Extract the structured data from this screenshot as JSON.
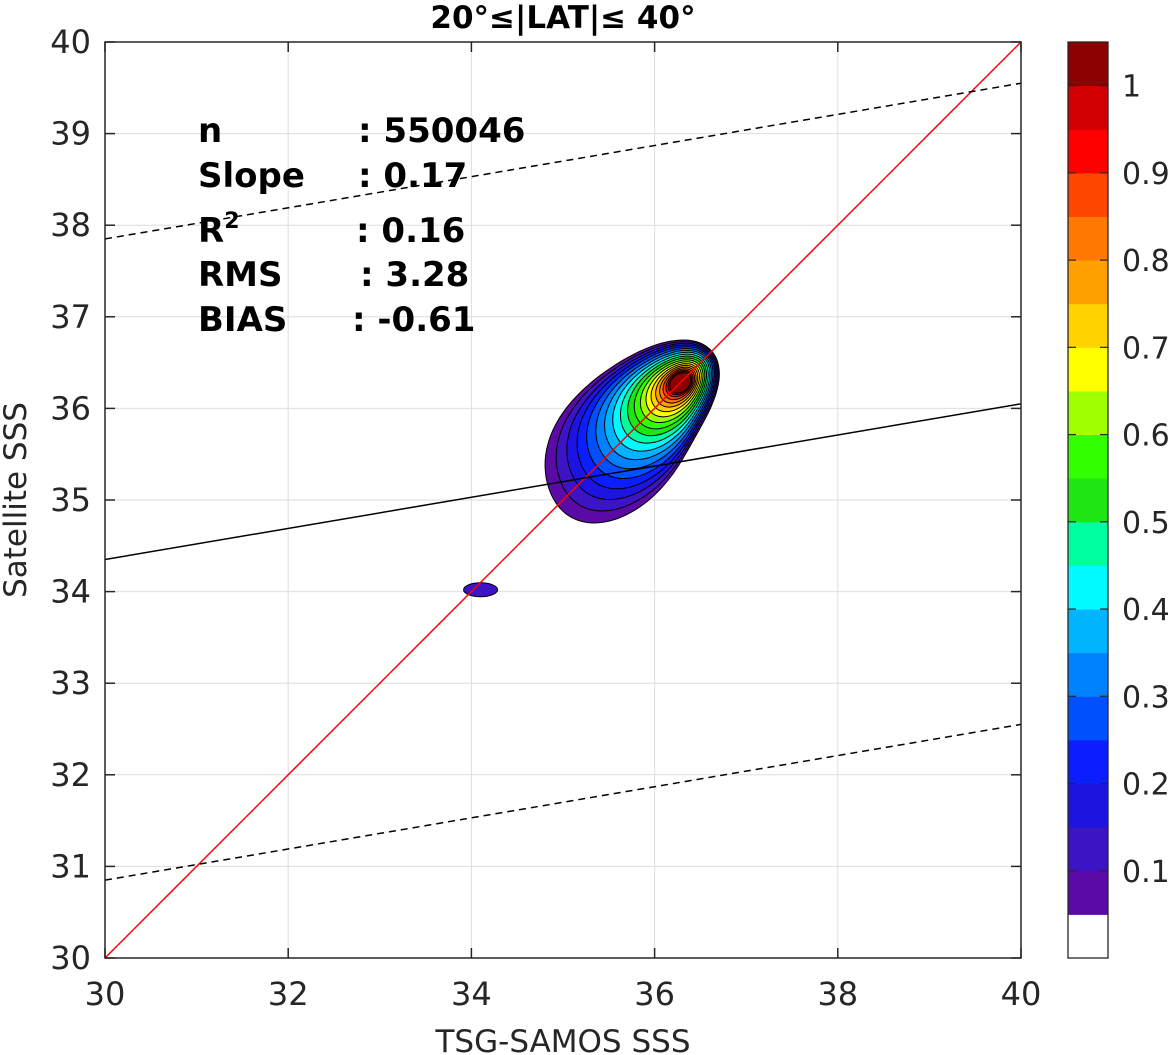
{
  "chart_data": {
    "type": "contour",
    "title": "20°≤|LAT|≤ 40°",
    "xlabel": "TSG-SAMOS SSS",
    "ylabel": "Satellite SSS",
    "xlim": [
      30,
      40
    ],
    "ylim": [
      30,
      40
    ],
    "xticks": [
      "30",
      "32",
      "34",
      "36",
      "38",
      "40"
    ],
    "yticks": [
      "30",
      "31",
      "32",
      "33",
      "34",
      "35",
      "36",
      "37",
      "38",
      "39",
      "40"
    ],
    "grid": true,
    "stats": [
      {
        "label": "n",
        "value": ": 550046"
      },
      {
        "label": "Slope",
        "value": ": 0.17"
      },
      {
        "label": "R",
        "sup": "2",
        "value": ": 0.16"
      },
      {
        "label": "RMS",
        "value": ": 3.28"
      },
      {
        "label": "BIAS",
        "value": ": -0.61"
      }
    ],
    "lines": [
      {
        "name": "one-to-one",
        "color": "#ff0000",
        "style": "solid",
        "x": [
          30,
          40
        ],
        "y": [
          30,
          40
        ]
      },
      {
        "name": "regression",
        "color": "#000000",
        "style": "solid",
        "x": [
          30,
          40
        ],
        "y": [
          34.35,
          36.05
        ]
      },
      {
        "name": "upper-bound",
        "color": "#000000",
        "style": "dashed",
        "x": [
          30,
          40
        ],
        "y": [
          37.85,
          39.55
        ]
      },
      {
        "name": "lower-bound",
        "color": "#000000",
        "style": "dashed",
        "x": [
          30,
          40
        ],
        "y": [
          30.85,
          32.55
        ]
      }
    ],
    "density_levels": [
      0.05,
      0.1,
      0.15,
      0.2,
      0.25,
      0.3,
      0.35,
      0.4,
      0.45,
      0.5,
      0.55,
      0.6,
      0.65,
      0.7,
      0.75,
      0.8,
      0.85,
      0.9,
      0.95,
      1.0
    ],
    "density_peak": {
      "x": 36.28,
      "y": 36.28,
      "value": 1.0
    },
    "secondary_blob": {
      "x": 34.1,
      "y": 34.02,
      "level": 0.1
    },
    "colorbar": {
      "ticks": [
        "0.1",
        "0.2",
        "0.3",
        "0.4",
        "0.5",
        "0.6",
        "0.7",
        "0.8",
        "0.9",
        "1"
      ],
      "tick_values": [
        0.1,
        0.2,
        0.3,
        0.4,
        0.5,
        0.6,
        0.7,
        0.8,
        0.9,
        1.0
      ],
      "colors": [
        "#ffffff",
        "#5a0aa5",
        "#3c14c3",
        "#1e14e1",
        "#0a1eff",
        "#0050ff",
        "#0082ff",
        "#00b4ff",
        "#00faff",
        "#00ffa0",
        "#1ee614",
        "#32ff00",
        "#a0ff00",
        "#ffff00",
        "#ffd200",
        "#ffa000",
        "#ff7800",
        "#ff4600",
        "#ff0000",
        "#d20000",
        "#8c0000"
      ]
    }
  }
}
